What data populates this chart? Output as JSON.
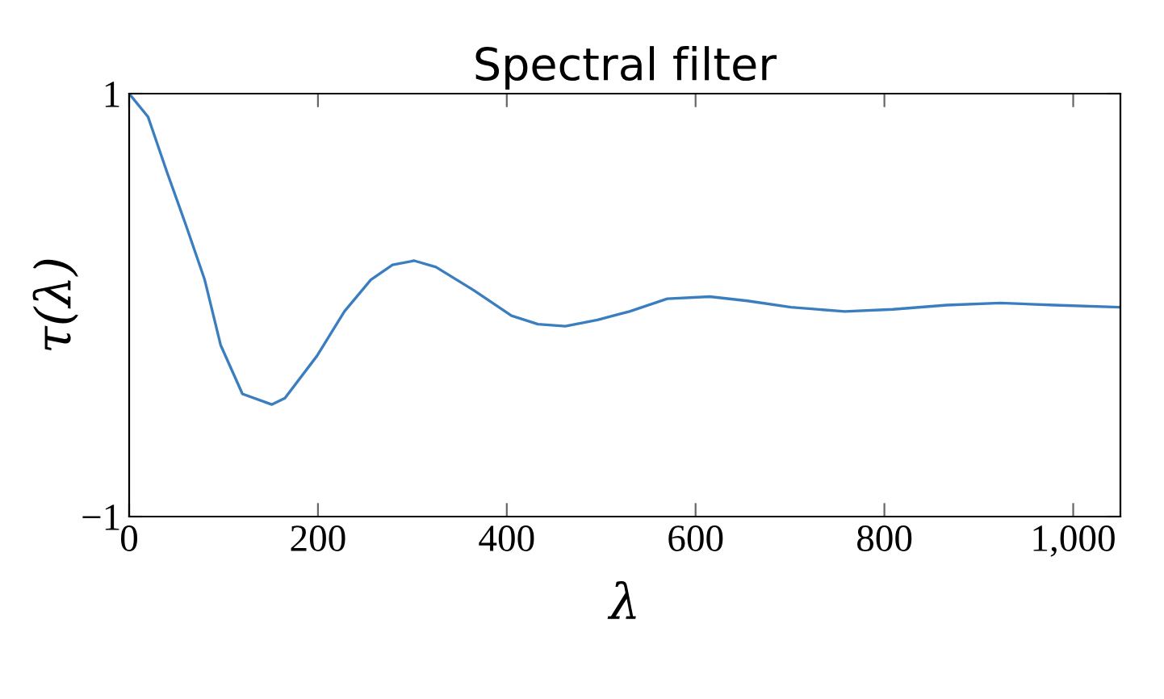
{
  "chart_data": {
    "type": "line",
    "title": "Spectral filter",
    "xlabel": "λ",
    "ylabel": "τ(λ)",
    "x": [
      0,
      20,
      40,
      60,
      80,
      97,
      120,
      151,
      165,
      199,
      228,
      256,
      279,
      302,
      325,
      365,
      405,
      433,
      462,
      496,
      530,
      570,
      615,
      655,
      701,
      758,
      809,
      866,
      923,
      980,
      1048
    ],
    "series": [
      {
        "color": "#3a7ebf",
        "values": [
          1.0,
          0.89,
          0.63,
          0.38,
          0.12,
          -0.19,
          -0.42,
          -0.47,
          -0.44,
          -0.24,
          -0.03,
          0.12,
          0.19,
          0.21,
          0.18,
          0.07,
          -0.05,
          -0.09,
          -0.1,
          -0.07,
          -0.03,
          0.03,
          0.04,
          0.02,
          -0.01,
          -0.03,
          -0.02,
          0.0,
          0.01,
          0.0,
          -0.01
        ]
      }
    ],
    "xlim": [
      0,
      1050
    ],
    "ylim": [
      -1,
      1
    ],
    "xticks": [
      0,
      200,
      400,
      600,
      800,
      {
        "value": 1000,
        "label": "1,000"
      }
    ],
    "yticks": [
      1,
      {
        "value": -1,
        "label": "−1"
      }
    ],
    "grid": false,
    "marker": "none",
    "line_style": "solid"
  }
}
